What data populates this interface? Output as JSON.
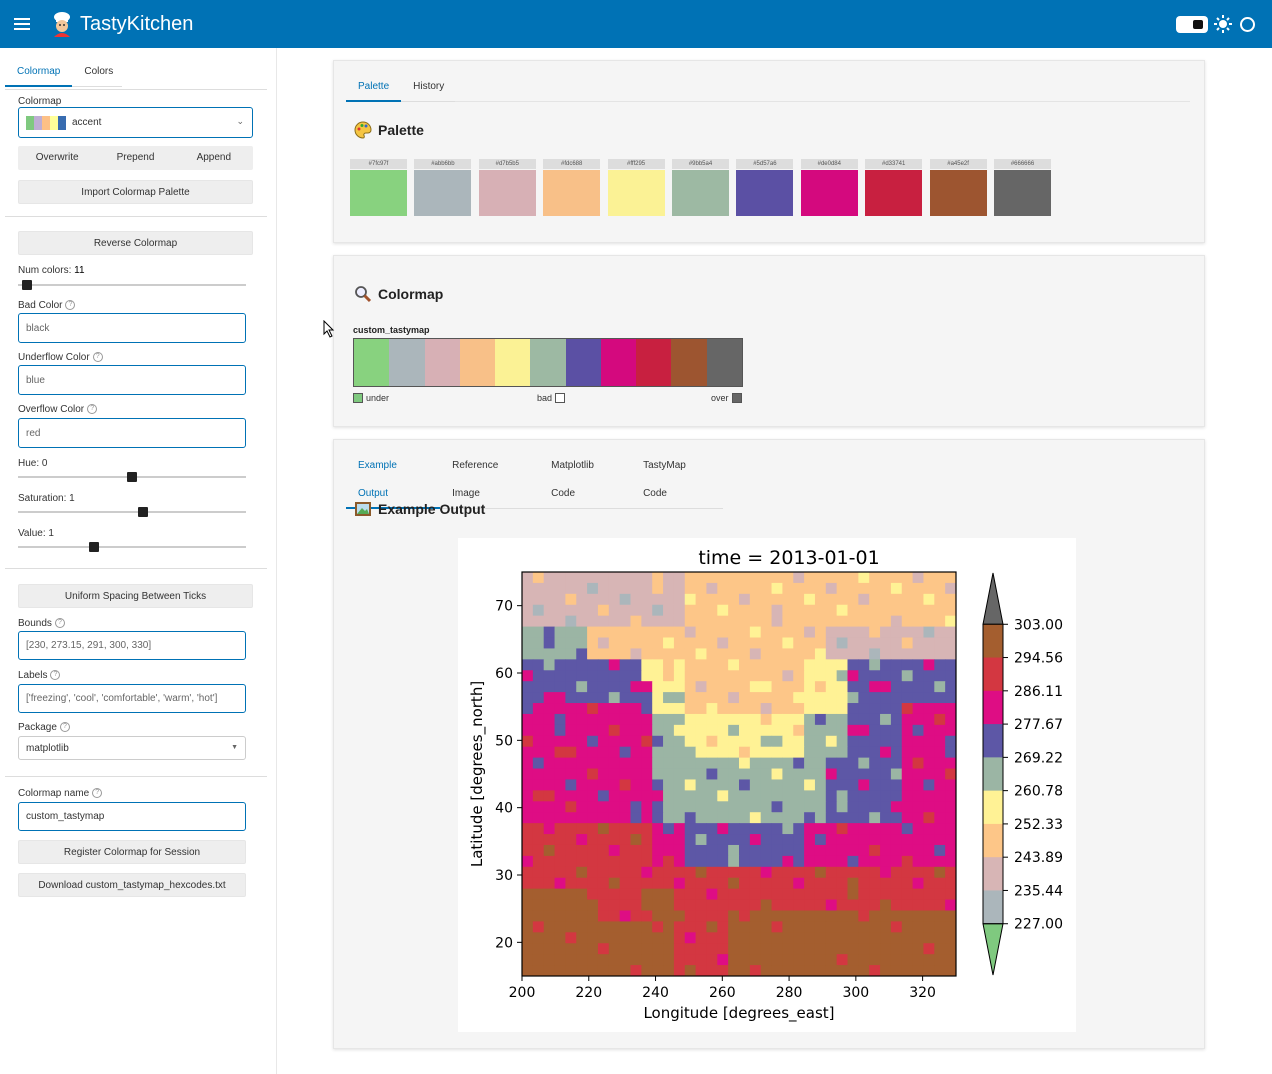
{
  "app": {
    "title": "TastyKitchen"
  },
  "sidebar": {
    "tabs": [
      "Colormap",
      "Colors"
    ],
    "colormap_label": "Colormap",
    "colormap_value": "accent",
    "mode_buttons": [
      "Overwrite",
      "Prepend",
      "Append"
    ],
    "import_button": "Import Colormap Palette",
    "reverse_button": "Reverse Colormap",
    "num_colors_label": "Num colors:",
    "num_colors_value": "11",
    "bad_color_label": "Bad Color",
    "bad_color_value": "black",
    "underflow_label": "Underflow Color",
    "underflow_value": "blue",
    "overflow_label": "Overflow Color",
    "overflow_value": "red",
    "hue_label": "Hue:",
    "hue_value": "0",
    "saturation_label": "Saturation:",
    "saturation_value": "1",
    "value_label": "Value:",
    "value_value": "1",
    "uniform_button": "Uniform Spacing Between Ticks",
    "bounds_label": "Bounds",
    "bounds_value": "[230, 273.15, 291, 300, 330]",
    "labels_label": "Labels",
    "labels_value": "['freezing', 'cool', 'comfortable', 'warm', 'hot']",
    "package_label": "Package",
    "package_value": "matplotlib",
    "cmap_name_label": "Colormap name",
    "cmap_name_value": "custom_tastymap",
    "register_button": "Register Colormap for Session",
    "download_button": "Download custom_tastymap_hexcodes.txt"
  },
  "palette_card": {
    "tabs": [
      "Palette",
      "History"
    ],
    "heading": "Palette",
    "swatches": [
      "#7fc97f",
      "#abb6bb",
      "#d7b5b5",
      "#fdc688",
      "#fff295",
      "#9bb5a4",
      "#5d57a6",
      "#de0d84",
      "#d33741",
      "#a45e2f",
      "#666666"
    ],
    "swatch_colors": [
      "#88d27f",
      "#abb6bb",
      "#d7b0b5",
      "#f8c088",
      "#fbf295",
      "#9db9a3",
      "#5b50a4",
      "#d4097e",
      "#c82040",
      "#9d5530",
      "#666666"
    ]
  },
  "colormap_card": {
    "heading": "Colormap",
    "cmap_name": "custom_tastymap",
    "under_label": "under",
    "bad_label": "bad",
    "over_label": "over",
    "under_color": "#7fc97f",
    "over_color": "#666666"
  },
  "output_card": {
    "tabs": [
      "Example Output",
      "Reference Image",
      "Matplotlib Code",
      "TastyMap Code"
    ],
    "heading": "Example Output"
  },
  "chart_data": {
    "type": "heatmap",
    "title": "time = 2013-01-01",
    "xlabel": "Longitude [degrees_east]",
    "ylabel": "Latitude [degrees_north]",
    "xticks": [
      200,
      220,
      240,
      260,
      280,
      300,
      320
    ],
    "yticks": [
      20,
      30,
      40,
      50,
      60,
      70
    ],
    "xlim": [
      200,
      330
    ],
    "ylim": [
      15,
      75
    ],
    "colorbar_ticks": [
      "303.00",
      "294.56",
      "286.11",
      "277.67",
      "269.22",
      "260.78",
      "252.33",
      "243.89",
      "235.44",
      "227.00"
    ],
    "colorbar_colors": [
      "#666666",
      "#a45e2f",
      "#d33741",
      "#de0d84",
      "#5d57a6",
      "#9bb5a4",
      "#fff295",
      "#fdc688",
      "#d7b5b5",
      "#abb6bb",
      "#7fc97f"
    ]
  }
}
